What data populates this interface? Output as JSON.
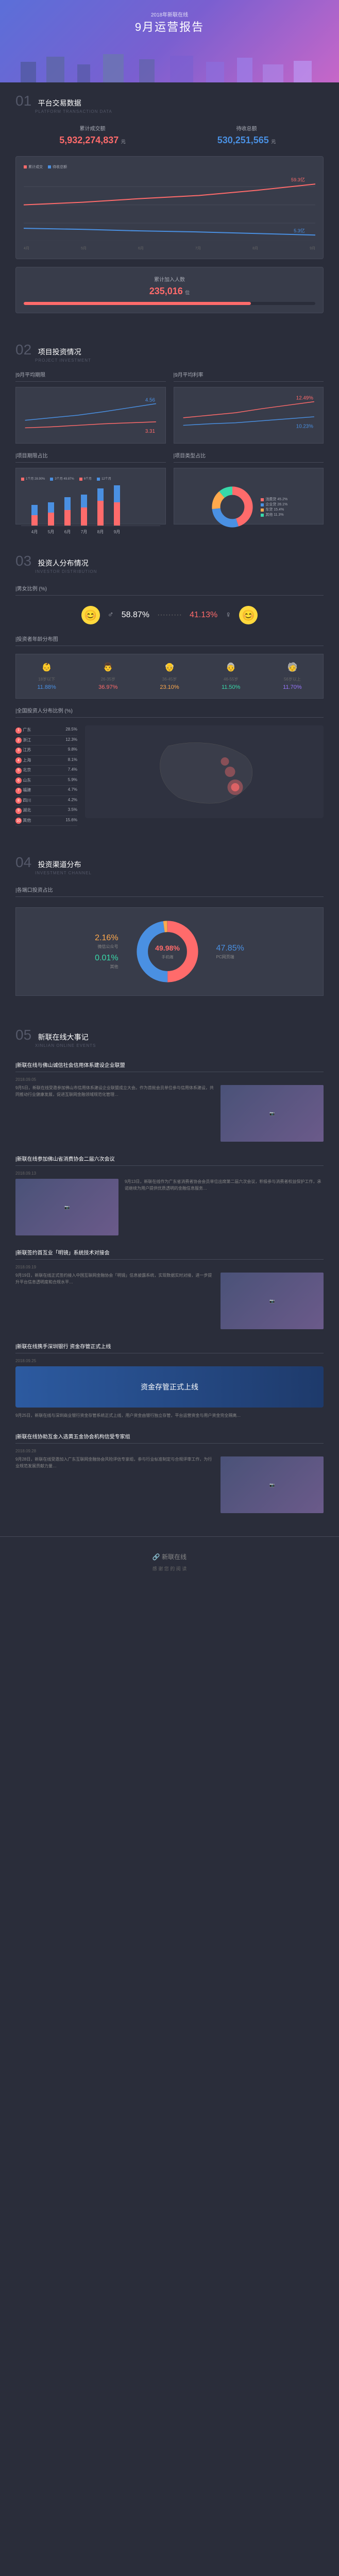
{
  "header": {
    "sub": "2018年新联在线",
    "main": "9月运营报告"
  },
  "sec01": {
    "num": "01",
    "title": "平台交易数据",
    "sub": "PLATFORM TRANSACTION DATA",
    "cum_label": "累计成交额",
    "cum_value": "5,932,274,837",
    "cum_unit": "元",
    "pending_label": "待收总额",
    "pending_value": "530,251,565",
    "pending_unit": "元",
    "chart": {
      "type": "line",
      "legend": [
        "累计成交",
        "待收总额"
      ],
      "colors": [
        "#ff6b6b",
        "#4a90e2"
      ],
      "x_ticks": [
        "4月",
        "5月",
        "6月",
        "7月",
        "8月",
        "9月"
      ],
      "series1": [
        52,
        54,
        56,
        57,
        58.5,
        59.3
      ],
      "series2": [
        6.8,
        6.5,
        6.0,
        5.8,
        5.5,
        5.3
      ],
      "end_label1": "59.3亿",
      "end_label2": "5.3亿",
      "background": "#383c4a",
      "grid_color": "#454958"
    },
    "members_label": "累计加入人数",
    "members_value": "235,016",
    "members_unit": "位",
    "members_progress_pct": 78
  },
  "sec02": {
    "num": "02",
    "title": "项目投资情况",
    "sub": "PROJECT INVESTMENT",
    "left_title": "|9月平均期限",
    "right_title": "|9月平均利率",
    "line_left": {
      "legend": [
        "期限",
        "总平均"
      ],
      "colors": [
        "#ff6b6b",
        "#4a90e2"
      ],
      "end_label1": "4.56",
      "end_label2": "3.31",
      "x_ticks": [
        "4月",
        "5月",
        "6月",
        "7月",
        "8月",
        "9月"
      ]
    },
    "line_right": {
      "legend": [
        "年化",
        "参考"
      ],
      "colors": [
        "#ff6b6b",
        "#4a90e2"
      ],
      "end_label1": "12.49%",
      "end_label2": "10.23%",
      "x_ticks": [
        "4月",
        "5月",
        "6月",
        "7月",
        "8月",
        "9月"
      ]
    },
    "bar_left_title": "|项目期限占比",
    "bar_left": {
      "legend": [
        "1个月 28.90%",
        "3个月 49.87%",
        "6个月",
        "12个月"
      ],
      "colors": [
        "#ff6b6b",
        "#4a90e2"
      ],
      "x": [
        "4月",
        "5月",
        "6月",
        "7月",
        "8月",
        "9月"
      ],
      "heights": [
        [
          20,
          40
        ],
        [
          25,
          45
        ],
        [
          30,
          55
        ],
        [
          35,
          60
        ],
        [
          48,
          72
        ],
        [
          45,
          78
        ]
      ]
    },
    "donut_title": "|项目类型占比",
    "donut": {
      "items": [
        {
          "label": "消费贷",
          "pct": "45.2%",
          "color": "#ff6b6b"
        },
        {
          "label": "企业贷",
          "pct": "28.1%",
          "color": "#4a90e2"
        },
        {
          "label": "车贷",
          "pct": "15.4%",
          "color": "#ffa94d"
        },
        {
          "label": "其他",
          "pct": "11.3%",
          "color": "#38d9a9"
        }
      ]
    }
  },
  "sec03": {
    "num": "03",
    "title": "投资人分布情况",
    "sub": "INVESTOR DISTRIBUTION",
    "gender_title": "|男女比例 (%)",
    "male_pct": "58.87",
    "female_pct": "41.13",
    "age_title": "|投资者年龄分布图",
    "ages": [
      {
        "range": "18岁以下",
        "pct": "11.88%",
        "color": "#4a90e2",
        "icon": "👶"
      },
      {
        "range": "26-35岁",
        "pct": "36.97%",
        "color": "#ff6b6b",
        "icon": "👨"
      },
      {
        "range": "36-45岁",
        "pct": "23.10%",
        "color": "#ffa94d",
        "icon": "👴"
      },
      {
        "range": "46-55岁",
        "pct": "11.50%",
        "color": "#38d9a9",
        "icon": "👵"
      },
      {
        "range": "56岁以上",
        "pct": "11.70%",
        "color": "#9775fa",
        "icon": "🧓"
      }
    ],
    "map_title": "|全国投资人分布比例 (%)",
    "ranks": [
      {
        "n": "1",
        "name": "广东",
        "pct": "28.5%"
      },
      {
        "n": "2",
        "name": "浙江",
        "pct": "12.3%"
      },
      {
        "n": "3",
        "name": "江苏",
        "pct": "9.8%"
      },
      {
        "n": "4",
        "name": "上海",
        "pct": "8.1%"
      },
      {
        "n": "5",
        "name": "北京",
        "pct": "7.4%"
      },
      {
        "n": "6",
        "name": "山东",
        "pct": "5.9%"
      },
      {
        "n": "7",
        "name": "福建",
        "pct": "4.7%"
      },
      {
        "n": "8",
        "name": "四川",
        "pct": "4.2%"
      },
      {
        "n": "9",
        "name": "湖北",
        "pct": "3.5%"
      },
      {
        "n": "10",
        "name": "其他",
        "pct": "15.6%"
      }
    ]
  },
  "sec04": {
    "num": "04",
    "title": "投资渠道分布",
    "sub": "INVESTMENT CHANNEL",
    "pie_title": "|各端口投资占比",
    "pie": {
      "center_pct": "49.98%",
      "center_label": "手机端",
      "center_color": "#ff6b6b",
      "left": [
        {
          "pct": "2.16%",
          "label": "微信公众号",
          "color": "#ffa94d"
        },
        {
          "pct": "0.01%",
          "label": "其他",
          "color": "#38d9a9"
        }
      ],
      "right": [
        {
          "pct": "47.85%",
          "label": "PC网页端",
          "color": "#4a90e2"
        }
      ]
    }
  },
  "sec05": {
    "num": "05",
    "title": "新联在线大事记",
    "sub": "XINLIAN ONLINE EVENTS",
    "events": [
      {
        "title": "|新联在线与佛山诚信社会信用体系建设企业联盟",
        "date": "2018.09.05",
        "text": "9月5日，新联在线受邀参加佛山市信用体系建设企业联盟成立大会。作为首批会员单位参与信用体系建设，共同推动行业健康发展，促进互联网金融领域规范化管理…",
        "img_pos": "right"
      },
      {
        "title": "|新联在线参加佛山省消费协会二届六次会议",
        "date": "2018.09.13",
        "text": "9月13日，新联在线作为广东省消费者协会会员单位出席第二届六次会议，积极参与消费者权益保护工作，承诺继续为用户提供优质透明的金融信息服务…",
        "img_pos": "left"
      },
      {
        "title": "|新联签约首互业「明镜」系统技术对接会",
        "date": "2018.09.19",
        "text": "9月19日，新联在线正式签约接入中国互联网金融协会「明镜」信息披露系统，实现数据实时对接，进一步提升平台信息透明度和合规水平…",
        "img_pos": "right"
      },
      {
        "title": "|新联在线携手深圳银行 资金存管正式上线",
        "date": "2018.09.25",
        "text": "9月25日，新联在线与深圳商业银行资金存管系统正式上线，用户资金由银行独立存管，平台运营资金与用户资金完全隔离…",
        "img_pos": "right",
        "banner": "资金存管正式上线"
      },
      {
        "title": "|新联在线协助互金入选黄五金协会机构信受专家组",
        "date": "2018.09.28",
        "text": "9月28日，新联在线受邀加入广东互联网金融协会风险评估专家组，参与行业标准制定与合规评审工作，为行业规范发展贡献力量…",
        "img_pos": "right"
      }
    ]
  },
  "footer": {
    "logo": "新联在线",
    "tag": "感 谢 您 的 阅 读"
  }
}
